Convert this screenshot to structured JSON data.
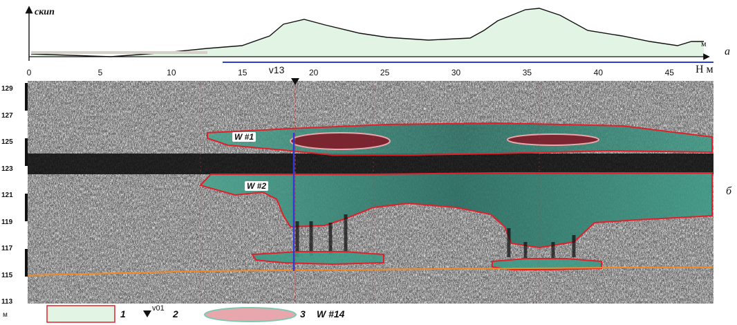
{
  "top_panel": {
    "y_axis_label": "скип",
    "x_unit": "м",
    "panel_letter": "а"
  },
  "distance_axis": {
    "ticks": [
      0,
      5,
      10,
      15,
      20,
      25,
      30,
      35,
      40,
      45
    ],
    "label": "H м",
    "range": [
      0,
      48
    ]
  },
  "marker": {
    "label": "v13",
    "x": 18.5
  },
  "radargram": {
    "panel_letter": "б",
    "elevation_ticks": [
      129,
      127,
      125,
      123,
      121,
      119,
      117,
      115,
      113
    ],
    "elevation_unit": "м",
    "zones": [
      {
        "label": "W #1"
      },
      {
        "label": "W #2"
      }
    ]
  },
  "legend": {
    "items": [
      {
        "number": "1",
        "symbol": "rectangle"
      },
      {
        "number": "2",
        "symbol": "triangle",
        "text": "v01"
      },
      {
        "number": "3",
        "symbol": "ellipse",
        "text": "W #14"
      }
    ]
  },
  "colors": {
    "zone_fill": "#2f7a6c",
    "zone_border": "#e0202a",
    "lens_fill": "#e8a7ad",
    "profile_fill": "#e2f4e3",
    "axis_blue": "#2a3cd6",
    "horizon_orange": "#f08a24"
  }
}
